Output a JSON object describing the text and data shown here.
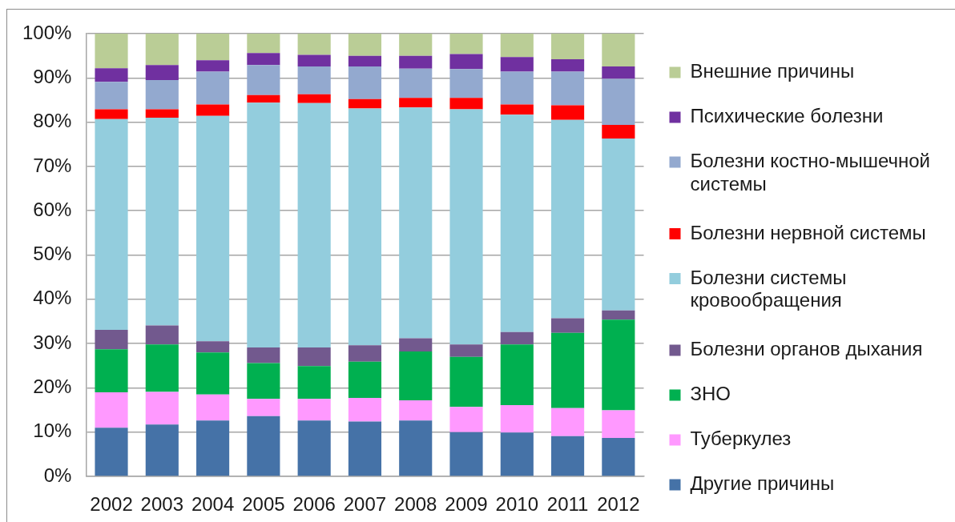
{
  "chart_data": {
    "type": "bar",
    "stacked": true,
    "categories": [
      "2002",
      "2003",
      "2004",
      "2005",
      "2006",
      "2007",
      "2008",
      "2009",
      "2010",
      "2011",
      "2012"
    ],
    "series": [
      {
        "name": "Другие причины",
        "color": "#4572a7",
        "values": [
          11,
          11.7,
          12.6,
          13.6,
          12.6,
          12.4,
          12.6,
          10,
          9.9,
          9.1,
          8.7
        ]
      },
      {
        "name": "Туберкулез",
        "color": "#ff99ff",
        "values": [
          8,
          7.4,
          5.9,
          3.9,
          4.9,
          5.3,
          4.6,
          5.7,
          6.2,
          6.3,
          6.2
        ]
      },
      {
        "name": "ЗНО",
        "color": "#00b050",
        "values": [
          9.7,
          10.7,
          9.5,
          8.1,
          7.4,
          8.2,
          11,
          11.3,
          13.7,
          17,
          20.5
        ]
      },
      {
        "name": "Болезни органов дыхания",
        "color": "#72598e",
        "values": [
          4.4,
          4.3,
          2.5,
          3.5,
          4.2,
          3.7,
          3,
          2.8,
          2.8,
          3.3,
          2.1
        ]
      },
      {
        "name": "Болезни системы кровообращения",
        "color": "#93cddd",
        "values": [
          47.6,
          46.9,
          50.9,
          55.3,
          55.2,
          53.5,
          52.1,
          53.1,
          49.1,
          44.8,
          38.8
        ]
      },
      {
        "name": "Болезни нервной системы",
        "color": "#ff0000",
        "values": [
          2.2,
          1.9,
          2.6,
          1.7,
          2,
          2.1,
          2.2,
          2.6,
          2.3,
          3.3,
          3.1
        ]
      },
      {
        "name": "Болезни костно-мышечной системы",
        "color": "#93a9cf",
        "values": [
          6.2,
          6.6,
          7.4,
          6.8,
          6.3,
          7.4,
          6.6,
          6.5,
          7.4,
          7.6,
          10.4
        ]
      },
      {
        "name": "Психические болезни",
        "color": "#7030a0",
        "values": [
          3.1,
          3.4,
          2.6,
          2.7,
          2.6,
          2.4,
          2.9,
          3.4,
          3.3,
          2.8,
          2.8
        ]
      },
      {
        "name": "Внешние причины",
        "color": "#bacd96",
        "values": [
          7.8,
          7.1,
          6,
          4.4,
          4.8,
          5,
          5,
          4.6,
          5.3,
          5.8,
          7.4
        ]
      }
    ],
    "ylim": [
      0,
      100
    ],
    "yticks": [
      {
        "value": 0,
        "label": "0%"
      },
      {
        "value": 10,
        "label": "10%"
      },
      {
        "value": 20,
        "label": "20%"
      },
      {
        "value": 30,
        "label": "30%"
      },
      {
        "value": 40,
        "label": "40%"
      },
      {
        "value": 50,
        "label": "50%"
      },
      {
        "value": 60,
        "label": "60%"
      },
      {
        "value": 70,
        "label": "70%"
      },
      {
        "value": 80,
        "label": "80%"
      },
      {
        "value": 90,
        "label": "90%"
      },
      {
        "value": 100,
        "label": "100%"
      }
    ],
    "grid": "y",
    "legend": "right"
  }
}
